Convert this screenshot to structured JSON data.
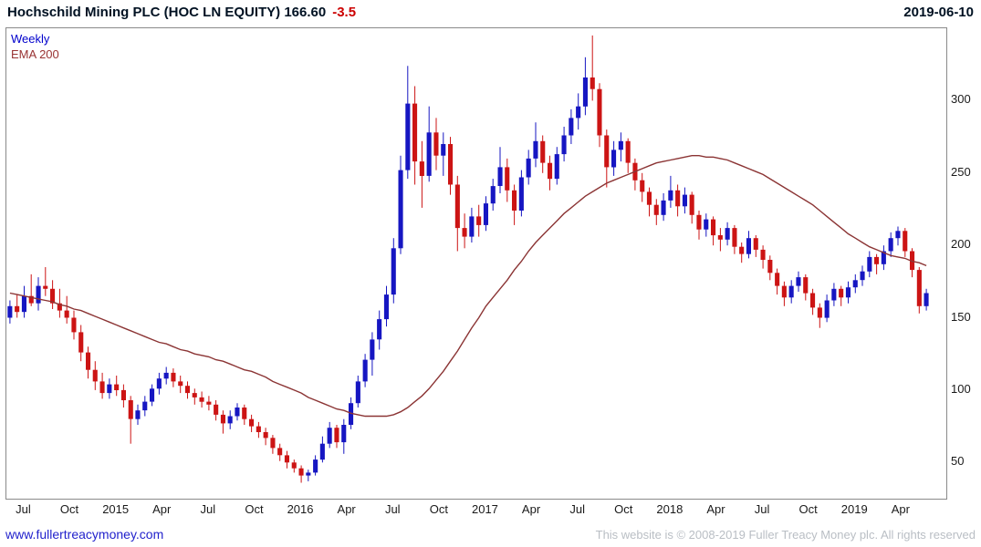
{
  "header": {
    "title": "Hochschild Mining PLC (HOC LN EQUITY) 166.60",
    "change": "-3.5",
    "date": "2019-06-10"
  },
  "legend": {
    "timeframe": "Weekly",
    "indicator": "EMA 200"
  },
  "footer": {
    "website": "www.fullertreacymoney.com",
    "copyright": "This website is © 2008-2019 Fuller Treacy Money plc. All rights reserved"
  },
  "colors": {
    "candle_up": "#1616c2",
    "candle_down": "#cc1414",
    "ema_line": "#8b3434",
    "title_text": "#001122",
    "change_text": "#cc0000",
    "axis_text": "#1a1a1a",
    "border": "#8a8a8a",
    "link": "#2222cc",
    "copyright": "#b9bec4"
  },
  "chart_data": {
    "type": "candlestick",
    "name": "Hochschild Mining PLC",
    "symbol": "HOC LN EQUITY",
    "timeframe": "Weekly",
    "indicator": "EMA 200",
    "last_price": 166.6,
    "change": -3.5,
    "date": "2019-06-10",
    "grid": false,
    "legend_position": "top-left",
    "ylim": [
      25,
      350
    ],
    "y_ticks": [
      50,
      100,
      150,
      200,
      250,
      300
    ],
    "x_ticks": [
      {
        "label": "Jul",
        "i": 2
      },
      {
        "label": "Oct",
        "i": 8.5
      },
      {
        "label": "2015",
        "i": 15
      },
      {
        "label": "Apr",
        "i": 21.5
      },
      {
        "label": "Jul",
        "i": 28
      },
      {
        "label": "Oct",
        "i": 34.5
      },
      {
        "label": "2016",
        "i": 41
      },
      {
        "label": "Apr",
        "i": 47.5
      },
      {
        "label": "Jul",
        "i": 54
      },
      {
        "label": "Oct",
        "i": 60.5
      },
      {
        "label": "2017",
        "i": 67
      },
      {
        "label": "Apr",
        "i": 73.5
      },
      {
        "label": "Jul",
        "i": 80
      },
      {
        "label": "Oct",
        "i": 86.5
      },
      {
        "label": "2018",
        "i": 93
      },
      {
        "label": "Apr",
        "i": 99.5
      },
      {
        "label": "Jul",
        "i": 106
      },
      {
        "label": "Oct",
        "i": 112.5
      },
      {
        "label": "2019",
        "i": 119
      },
      {
        "label": "Apr",
        "i": 125.5
      }
    ],
    "candles": [
      [
        150,
        162,
        146,
        158
      ],
      [
        158,
        166,
        150,
        154
      ],
      [
        154,
        172,
        150,
        165
      ],
      [
        165,
        180,
        158,
        160
      ],
      [
        160,
        178,
        155,
        172
      ],
      [
        172,
        185,
        165,
        170
      ],
      [
        170,
        176,
        156,
        160
      ],
      [
        160,
        170,
        150,
        155
      ],
      [
        155,
        165,
        146,
        150
      ],
      [
        150,
        155,
        135,
        140
      ],
      [
        140,
        145,
        120,
        126
      ],
      [
        126,
        130,
        108,
        114
      ],
      [
        114,
        120,
        100,
        106
      ],
      [
        106,
        112,
        94,
        98
      ],
      [
        98,
        108,
        94,
        104
      ],
      [
        104,
        110,
        96,
        100
      ],
      [
        100,
        104,
        88,
        93
      ],
      [
        93,
        96,
        63,
        80
      ],
      [
        80,
        90,
        76,
        86
      ],
      [
        86,
        96,
        82,
        92
      ],
      [
        92,
        104,
        89,
        101
      ],
      [
        101,
        112,
        97,
        108
      ],
      [
        108,
        116,
        104,
        112
      ],
      [
        112,
        115,
        102,
        106
      ],
      [
        106,
        110,
        98,
        103
      ],
      [
        103,
        106,
        94,
        98
      ],
      [
        98,
        101,
        90,
        95
      ],
      [
        95,
        99,
        88,
        92
      ],
      [
        92,
        96,
        86,
        90
      ],
      [
        90,
        93,
        79,
        83
      ],
      [
        83,
        86,
        70,
        77
      ],
      [
        77,
        86,
        73,
        82
      ],
      [
        82,
        91,
        79,
        88
      ],
      [
        88,
        90,
        76,
        80
      ],
      [
        80,
        83,
        71,
        75
      ],
      [
        75,
        78,
        67,
        71
      ],
      [
        71,
        74,
        62,
        67
      ],
      [
        67,
        69,
        56,
        60
      ],
      [
        60,
        63,
        51,
        55
      ],
      [
        55,
        58,
        46,
        50
      ],
      [
        50,
        52,
        43,
        46
      ],
      [
        46,
        48,
        36,
        41
      ],
      [
        41,
        45,
        37,
        43
      ],
      [
        43,
        55,
        41,
        52
      ],
      [
        52,
        68,
        50,
        63
      ],
      [
        63,
        78,
        60,
        74
      ],
      [
        74,
        76,
        60,
        64
      ],
      [
        64,
        80,
        56,
        76
      ],
      [
        76,
        95,
        73,
        91
      ],
      [
        91,
        110,
        88,
        106
      ],
      [
        106,
        125,
        102,
        121
      ],
      [
        121,
        140,
        110,
        135
      ],
      [
        135,
        155,
        128,
        149
      ],
      [
        149,
        172,
        144,
        166
      ],
      [
        166,
        205,
        160,
        198
      ],
      [
        198,
        262,
        194,
        252
      ],
      [
        252,
        324,
        246,
        298
      ],
      [
        298,
        310,
        242,
        258
      ],
      [
        258,
        272,
        226,
        248
      ],
      [
        248,
        296,
        244,
        278
      ],
      [
        278,
        288,
        252,
        262
      ],
      [
        262,
        278,
        248,
        270
      ],
      [
        270,
        275,
        235,
        242
      ],
      [
        242,
        248,
        196,
        212
      ],
      [
        212,
        222,
        198,
        206
      ],
      [
        206,
        226,
        202,
        220
      ],
      [
        220,
        228,
        206,
        214
      ],
      [
        214,
        234,
        210,
        229
      ],
      [
        229,
        246,
        224,
        241
      ],
      [
        241,
        268,
        236,
        254
      ],
      [
        254,
        260,
        230,
        238
      ],
      [
        238,
        242,
        214,
        224
      ],
      [
        224,
        252,
        220,
        247
      ],
      [
        247,
        266,
        242,
        260
      ],
      [
        260,
        285,
        254,
        272
      ],
      [
        272,
        276,
        250,
        257
      ],
      [
        257,
        262,
        238,
        246
      ],
      [
        246,
        268,
        242,
        263
      ],
      [
        263,
        282,
        258,
        276
      ],
      [
        276,
        294,
        270,
        288
      ],
      [
        288,
        305,
        280,
        296
      ],
      [
        296,
        330,
        290,
        316
      ],
      [
        316,
        345,
        300,
        308
      ],
      [
        308,
        312,
        268,
        276
      ],
      [
        276,
        280,
        240,
        254
      ],
      [
        254,
        272,
        248,
        266
      ],
      [
        266,
        278,
        258,
        272
      ],
      [
        272,
        274,
        250,
        257
      ],
      [
        257,
        260,
        238,
        245
      ],
      [
        245,
        250,
        230,
        237
      ],
      [
        237,
        240,
        220,
        228
      ],
      [
        228,
        232,
        214,
        221
      ],
      [
        221,
        236,
        217,
        231
      ],
      [
        231,
        248,
        226,
        238
      ],
      [
        238,
        242,
        220,
        227
      ],
      [
        227,
        240,
        222,
        235
      ],
      [
        235,
        237,
        215,
        221
      ],
      [
        221,
        224,
        204,
        211
      ],
      [
        211,
        222,
        206,
        218
      ],
      [
        218,
        220,
        200,
        207
      ],
      [
        207,
        212,
        196,
        204
      ],
      [
        204,
        216,
        200,
        212
      ],
      [
        212,
        214,
        194,
        199
      ],
      [
        199,
        202,
        188,
        194
      ],
      [
        194,
        210,
        191,
        205
      ],
      [
        205,
        207,
        192,
        197
      ],
      [
        197,
        200,
        184,
        190
      ],
      [
        190,
        193,
        176,
        181
      ],
      [
        181,
        184,
        166,
        172
      ],
      [
        172,
        175,
        158,
        164
      ],
      [
        164,
        176,
        160,
        172
      ],
      [
        172,
        182,
        168,
        178
      ],
      [
        178,
        180,
        162,
        167
      ],
      [
        167,
        170,
        152,
        157
      ],
      [
        157,
        160,
        143,
        150
      ],
      [
        150,
        166,
        147,
        162
      ],
      [
        162,
        174,
        158,
        170
      ],
      [
        170,
        172,
        158,
        164
      ],
      [
        164,
        175,
        160,
        171
      ],
      [
        171,
        180,
        167,
        176
      ],
      [
        176,
        186,
        172,
        182
      ],
      [
        182,
        196,
        178,
        192
      ],
      [
        192,
        194,
        180,
        187
      ],
      [
        187,
        200,
        183,
        196
      ],
      [
        196,
        209,
        192,
        205
      ],
      [
        205,
        213,
        200,
        210
      ],
      [
        210,
        212,
        192,
        196
      ],
      [
        196,
        198,
        178,
        183
      ],
      [
        183,
        185,
        153,
        158
      ],
      [
        158,
        170,
        155,
        167
      ]
    ],
    "ema_200": [
      167,
      166,
      165,
      164,
      163,
      162,
      161,
      159,
      158,
      156,
      155,
      153,
      151,
      149,
      147,
      145,
      143,
      141,
      139,
      137,
      135,
      133,
      132,
      130,
      128,
      127,
      125,
      124,
      123,
      121,
      120,
      118,
      116,
      114,
      113,
      111,
      109,
      106,
      104,
      102,
      100,
      98,
      95,
      93,
      91,
      89,
      87,
      86,
      84,
      83,
      82,
      82,
      82,
      82,
      83,
      85,
      88,
      92,
      96,
      101,
      107,
      113,
      120,
      127,
      135,
      143,
      150,
      158,
      164,
      170,
      176,
      183,
      189,
      196,
      202,
      207,
      212,
      217,
      222,
      226,
      230,
      234,
      237,
      240,
      243,
      245,
      247,
      249,
      251,
      253,
      255,
      257,
      258,
      259,
      260,
      261,
      262,
      262,
      261,
      261,
      260,
      259,
      257,
      255,
      253,
      251,
      249,
      246,
      243,
      240,
      237,
      234,
      231,
      228,
      224,
      220,
      216,
      212,
      208,
      205,
      202,
      199,
      197,
      195,
      193,
      192,
      191,
      189,
      188,
      186
    ]
  }
}
